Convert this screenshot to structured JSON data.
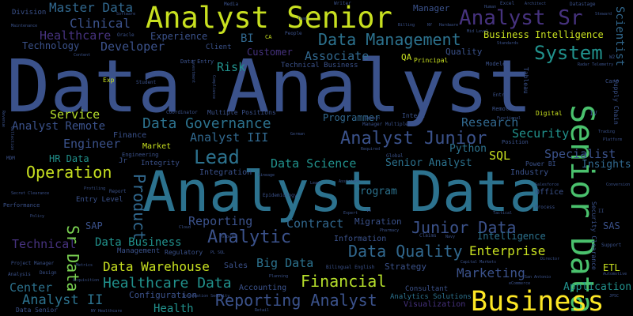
{
  "words": [
    {
      "text": "Data Analyst",
      "color": "#3b528b"
    },
    {
      "text": "Analyst Data",
      "color": "#2c728e"
    },
    {
      "text": "Analyst Senior",
      "color": "#c8e020"
    },
    {
      "text": "Senior Data",
      "color": "#4ac16d"
    },
    {
      "text": "Business",
      "color": "#fde725"
    },
    {
      "text": "Analyst Sr",
      "color": "#46327e"
    },
    {
      "text": "Data Management",
      "color": "#2c728e"
    },
    {
      "text": "System",
      "color": "#21918c"
    },
    {
      "text": "Analyst Junior",
      "color": "#3b528b"
    },
    {
      "text": "Data Governance",
      "color": "#2c728e"
    },
    {
      "text": "Operation",
      "color": "#c8e020"
    },
    {
      "text": "Lead",
      "color": "#2c728e"
    },
    {
      "text": "Analytic",
      "color": "#3b528b"
    },
    {
      "text": "Data Quality",
      "color": "#31688e"
    },
    {
      "text": "Junior Data",
      "color": "#3b528b"
    },
    {
      "text": "Financial",
      "color": "#b5de2b"
    },
    {
      "text": "Reporting Analyst",
      "color": "#3b528b"
    },
    {
      "text": "Healthcare Data",
      "color": "#21918c"
    },
    {
      "text": "Data Warehouse",
      "color": "#c8e020"
    },
    {
      "text": "Analyst II",
      "color": "#2c728e"
    },
    {
      "text": "Sr Data",
      "color": "#7ad151"
    },
    {
      "text": "Product",
      "color": "#31688e"
    },
    {
      "text": "Master Data",
      "color": "#31688e"
    },
    {
      "text": "Clinical",
      "color": "#3b528b"
    },
    {
      "text": "Healthcare",
      "color": "#46327e"
    },
    {
      "text": "Developer",
      "color": "#3b528b"
    },
    {
      "text": "Risk",
      "color": "#21918c"
    },
    {
      "text": "Associate",
      "color": "#31688e"
    },
    {
      "text": "Quality",
      "color": "#3b528b"
    },
    {
      "text": "Business Intelligence",
      "color": "#c8e020"
    },
    {
      "text": "Analyst Remote",
      "color": "#3b528b"
    },
    {
      "text": "Service",
      "color": "#b5de2b"
    },
    {
      "text": "Engineer",
      "color": "#3b528b"
    },
    {
      "text": "Analyst III",
      "color": "#31688e"
    },
    {
      "text": "Data Science",
      "color": "#21918c"
    },
    {
      "text": "Senior Analyst",
      "color": "#2c728e"
    },
    {
      "text": "Research",
      "color": "#31688e"
    },
    {
      "text": "Security",
      "color": "#21918c"
    },
    {
      "text": "Specialist",
      "color": "#3b528b"
    },
    {
      "text": "SQL",
      "color": "#c8e020"
    },
    {
      "text": "Python",
      "color": "#2c728e"
    },
    {
      "text": "Reporting",
      "color": "#3b528b"
    },
    {
      "text": "Contract",
      "color": "#31688e"
    },
    {
      "text": "Program",
      "color": "#2c728e"
    },
    {
      "text": "Marketing",
      "color": "#3b528b"
    },
    {
      "text": "Enterprise",
      "color": "#c8e020"
    },
    {
      "text": "Intelligence",
      "color": "#2c728e"
    },
    {
      "text": "Technical",
      "color": "#46327e"
    },
    {
      "text": "Data Business",
      "color": "#21918c"
    },
    {
      "text": "Big Data",
      "color": "#2c728e"
    },
    {
      "text": "Center",
      "color": "#2c728e"
    },
    {
      "text": "Health",
      "color": "#21918c"
    },
    {
      "text": "Scientist",
      "color": "#31688e"
    },
    {
      "text": "Insights",
      "color": "#31688e"
    },
    {
      "text": "Application",
      "color": "#21918c"
    },
    {
      "text": "Experience",
      "color": "#3b528b"
    },
    {
      "text": "Technology",
      "color": "#3b528b"
    },
    {
      "text": "Customer",
      "color": "#46327e"
    },
    {
      "text": "Programmer",
      "color": "#31688e"
    },
    {
      "text": "Division",
      "color": "#3b528b"
    },
    {
      "text": "BI",
      "color": "#31688e"
    },
    {
      "text": "HR Data",
      "color": "#21918c"
    },
    {
      "text": "SAP",
      "color": "#3b528b"
    },
    {
      "text": "SAS",
      "color": "#3b528b"
    },
    {
      "text": "ETL",
      "color": "#c8e020"
    },
    {
      "text": "QA",
      "color": "#c8e020"
    },
    {
      "text": "Manager",
      "color": "#3b528b"
    },
    {
      "text": "Configuration",
      "color": "#3b528b"
    },
    {
      "text": "Accounting",
      "color": "#3b528b"
    },
    {
      "text": "Migration",
      "color": "#3b528b"
    },
    {
      "text": "Strategy",
      "color": "#3b528b"
    },
    {
      "text": "Visualization",
      "color": "#46327e"
    },
    {
      "text": "Analytics Solutions",
      "color": "#2c728e"
    },
    {
      "text": "Consultant",
      "color": "#3b528b"
    },
    {
      "text": "Client",
      "color": "#3b528b"
    },
    {
      "text": "Technical Business",
      "color": "#3b528b"
    },
    {
      "text": "Integration",
      "color": "#3b528b"
    },
    {
      "text": "Industry",
      "color": "#3b528b"
    },
    {
      "text": "Office",
      "color": "#3b528b"
    },
    {
      "text": "Market",
      "color": "#c8e020"
    },
    {
      "text": "Finance",
      "color": "#3b528b"
    },
    {
      "text": "Integrity",
      "color": "#3b528b"
    },
    {
      "text": "Sales",
      "color": "#3b528b"
    },
    {
      "text": "Information",
      "color": "#3b528b"
    },
    {
      "text": "Entry Level",
      "color": "#3b528b"
    },
    {
      "text": "Management",
      "color": "#3b528b"
    },
    {
      "text": "Regulatory",
      "color": "#3b528b"
    },
    {
      "text": "Multiple Positions",
      "color": "#3b528b"
    },
    {
      "text": "Intern",
      "color": "#3b528b"
    },
    {
      "text": "Principal",
      "color": "#c8e020"
    },
    {
      "text": "Tableau",
      "color": "#3b528b"
    },
    {
      "text": "Digital",
      "color": "#c8e020"
    },
    {
      "text": "Supply Chain",
      "color": "#3b528b"
    },
    {
      "text": "Security Clearance",
      "color": "#3b528b"
    },
    {
      "text": "Remote",
      "color": "#3b528b"
    },
    {
      "text": "Position",
      "color": "#3b528b"
    },
    {
      "text": "Power BI",
      "color": "#3b528b"
    },
    {
      "text": "Engineering",
      "color": "#3b528b"
    },
    {
      "text": "Data Senior",
      "color": "#3b528b"
    },
    {
      "text": "Writer",
      "color": "#3b528b"
    },
    {
      "text": "Excel",
      "color": "#3b528b"
    },
    {
      "text": "Media",
      "color": "#3b528b"
    },
    {
      "text": "Software",
      "color": "#3b528b"
    },
    {
      "text": "Architect",
      "color": "#3b528b"
    },
    {
      "text": "Datastage",
      "color": "#3b528b"
    },
    {
      "text": "Steward",
      "color": "#3b528b"
    },
    {
      "text": "Human",
      "color": "#3b528b"
    },
    {
      "text": "Student",
      "color": "#3b528b"
    },
    {
      "text": "Exp",
      "color": "#c8e020"
    },
    {
      "text": "Coordinator",
      "color": "#3b528b"
    },
    {
      "text": "Compliance",
      "color": "#3b528b"
    },
    {
      "text": "Investment",
      "color": "#3b528b"
    },
    {
      "text": "Epidemiology",
      "color": "#3b528b"
    },
    {
      "text": "Lineage",
      "color": "#3b528b"
    },
    {
      "text": "Global",
      "color": "#3b528b"
    },
    {
      "text": "Claims",
      "color": "#3b528b"
    },
    {
      "text": "Pharmacy",
      "color": "#3b528b"
    },
    {
      "text": "Bilingual English",
      "color": "#3b528b"
    },
    {
      "text": "Capital Markets",
      "color": "#3b528b"
    },
    {
      "text": "San Antonio",
      "color": "#3b528b"
    },
    {
      "text": "Information Security",
      "color": "#3b528b"
    },
    {
      "text": "Project Manager",
      "color": "#3b528b"
    },
    {
      "text": "Design",
      "color": "#3b528b"
    },
    {
      "text": "Growth",
      "color": "#3b528b"
    },
    {
      "text": "Cloud",
      "color": "#3b528b"
    },
    {
      "text": "Report",
      "color": "#3b528b"
    },
    {
      "text": "Secret Clearance",
      "color": "#3b528b"
    },
    {
      "text": "Performance",
      "color": "#3b528b"
    },
    {
      "text": "Policy",
      "color": "#3b528b"
    },
    {
      "text": "Retail",
      "color": "#3b528b"
    },
    {
      "text": "Planning",
      "color": "#3b528b"
    },
    {
      "text": "NY Healthcare",
      "color": "#3b528b"
    },
    {
      "text": "Analysis",
      "color": "#3b528b"
    },
    {
      "text": "Acquisition",
      "color": "#3b528b"
    },
    {
      "text": "Revenue",
      "color": "#3b528b"
    },
    {
      "text": "MDM",
      "color": "#3b528b"
    },
    {
      "text": "Care",
      "color": "#3b528b"
    },
    {
      "text": "IV",
      "color": "#3b528b"
    },
    {
      "text": "Trading",
      "color": "#3b528b"
    },
    {
      "text": "Platform",
      "color": "#3b528b"
    },
    {
      "text": "Conversion",
      "color": "#3b528b"
    },
    {
      "text": "Support",
      "color": "#3b528b"
    },
    {
      "text": "Automotive",
      "color": "#3b528b"
    },
    {
      "text": "JPSC",
      "color": "#3b528b"
    },
    {
      "text": "Director",
      "color": "#3b528b"
    },
    {
      "text": "eCommerce",
      "color": "#3b528b"
    },
    {
      "text": "Navy",
      "color": "#3b528b"
    },
    {
      "text": "Tactical",
      "color": "#3b528b"
    },
    {
      "text": "Salesforce",
      "color": "#3b528b"
    },
    {
      "text": "Process",
      "color": "#3b528b"
    },
    {
      "text": "Expert",
      "color": "#3b528b"
    },
    {
      "text": "Assistant",
      "color": "#3b528b"
    },
    {
      "text": "Required",
      "color": "#3b528b"
    },
    {
      "text": "Manager Multiple",
      "color": "#3b528b"
    },
    {
      "text": "Domain",
      "color": "#3b528b"
    },
    {
      "text": "Billing",
      "color": "#3b528b"
    },
    {
      "text": "Entry",
      "color": "#3b528b"
    },
    {
      "text": "Mid Level",
      "color": "#3b528b"
    },
    {
      "text": "Standards",
      "color": "#3b528b"
    },
    {
      "text": "Radar Telemetry",
      "color": "#3b528b"
    },
    {
      "text": "Functional",
      "color": "#3b528b"
    },
    {
      "text": "Modeler",
      "color": "#3b528b"
    },
    {
      "text": "Team",
      "color": "#3b528b"
    },
    {
      "text": "People",
      "color": "#3b528b"
    },
    {
      "text": "Content",
      "color": "#3b528b"
    },
    {
      "text": "Maintenance",
      "color": "#3b528b"
    },
    {
      "text": "Collection",
      "color": "#3b528b"
    },
    {
      "text": "German",
      "color": "#3b528b"
    },
    {
      "text": "Profiling",
      "color": "#3b528b"
    },
    {
      "text": "Metrics",
      "color": "#3b528b"
    },
    {
      "text": "Hardware",
      "color": "#3b528b"
    },
    {
      "text": "Data Entry",
      "color": "#3b528b"
    },
    {
      "text": "Oracle",
      "color": "#3b528b"
    },
    {
      "text": "CA",
      "color": "#c8e020"
    },
    {
      "text": "VA",
      "color": "#3b528b"
    },
    {
      "text": "NY",
      "color": "#3b528b"
    },
    {
      "text": "II",
      "color": "#3b528b"
    },
    {
      "text": "Jr",
      "color": "#3b528b"
    },
    {
      "text": "W2",
      "color": "#3b528b"
    },
    {
      "text": "PL SQL",
      "color": "#3b528b"
    },
    {
      "text": "Lead",
      "color": "#3b528b"
    }
  ]
}
